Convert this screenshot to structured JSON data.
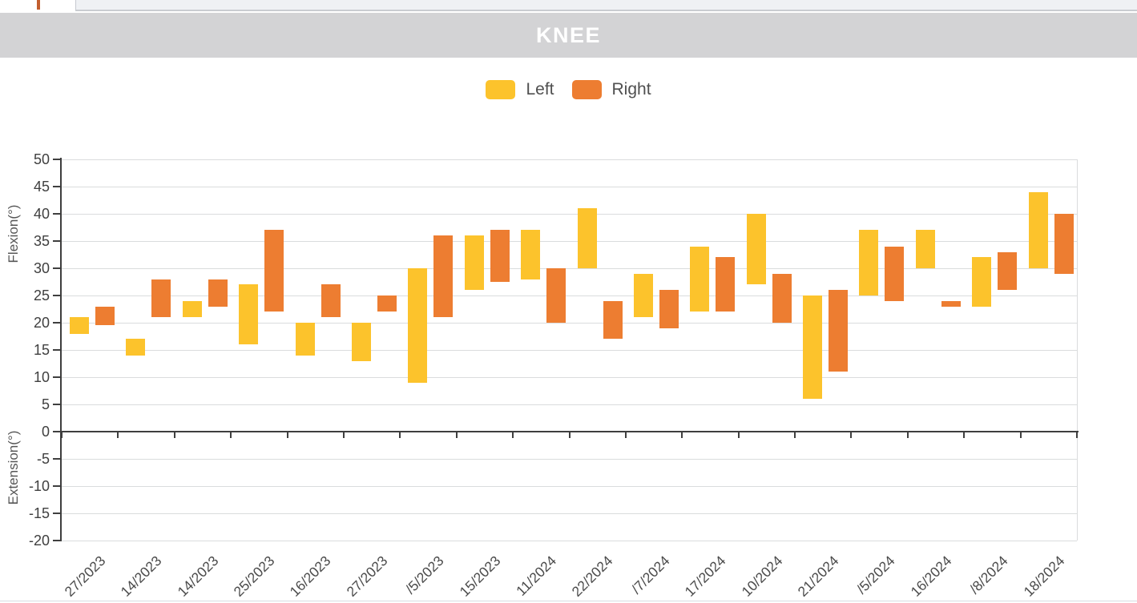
{
  "browser": {
    "tab_accent_color": "#c25e2e"
  },
  "header": {
    "title": "KNEE"
  },
  "legend": {
    "items": [
      {
        "label": "Left",
        "color": "#fcc32c"
      },
      {
        "label": "Right",
        "color": "#ed7d31"
      }
    ]
  },
  "chart_data": {
    "type": "bar",
    "subtype": "floating-range-bar",
    "title": "KNEE",
    "ylabel_upper": "Flexion(°)",
    "ylabel_lower": "Extension(°)",
    "ylim": [
      -20,
      50
    ],
    "ytick_step": 5,
    "grid": true,
    "legend_position": "top-center",
    "categories": [
      "27/2023",
      "14/2023",
      "14/2023",
      "25/2023",
      "16/2023",
      "27/2023",
      "/5/2023",
      "15/2023",
      "11/2024",
      "22/2024",
      "/7/2024",
      "17/2024",
      "10/2024",
      "21/2024",
      "/5/2024",
      "16/2024",
      "/8/2024",
      "18/2024"
    ],
    "series": [
      {
        "name": "Left",
        "color": "#fcc32c",
        "ranges": [
          [
            18,
            21
          ],
          [
            14,
            17
          ],
          [
            21,
            24
          ],
          [
            16,
            27
          ],
          [
            14,
            20
          ],
          [
            13,
            20
          ],
          [
            9,
            30
          ],
          [
            26,
            36
          ],
          [
            28,
            37
          ],
          [
            30,
            41
          ],
          [
            21,
            29
          ],
          [
            22,
            34
          ],
          [
            27,
            40
          ],
          [
            6,
            25
          ],
          [
            25,
            37
          ],
          [
            30,
            37
          ],
          [
            23,
            32
          ],
          [
            30,
            44
          ]
        ]
      },
      {
        "name": "Right",
        "color": "#ed7d31",
        "ranges": [
          [
            19.5,
            23
          ],
          [
            21,
            28
          ],
          [
            23,
            28
          ],
          [
            22,
            37
          ],
          [
            21,
            27
          ],
          [
            22,
            25
          ],
          [
            21,
            36
          ],
          [
            27.5,
            37
          ],
          [
            20,
            30
          ],
          [
            17,
            24
          ],
          [
            19,
            26
          ],
          [
            22,
            32
          ],
          [
            20,
            29
          ],
          [
            11,
            26
          ],
          [
            24,
            34
          ],
          [
            23,
            24
          ],
          [
            26,
            33
          ],
          [
            29,
            40
          ]
        ]
      }
    ]
  }
}
